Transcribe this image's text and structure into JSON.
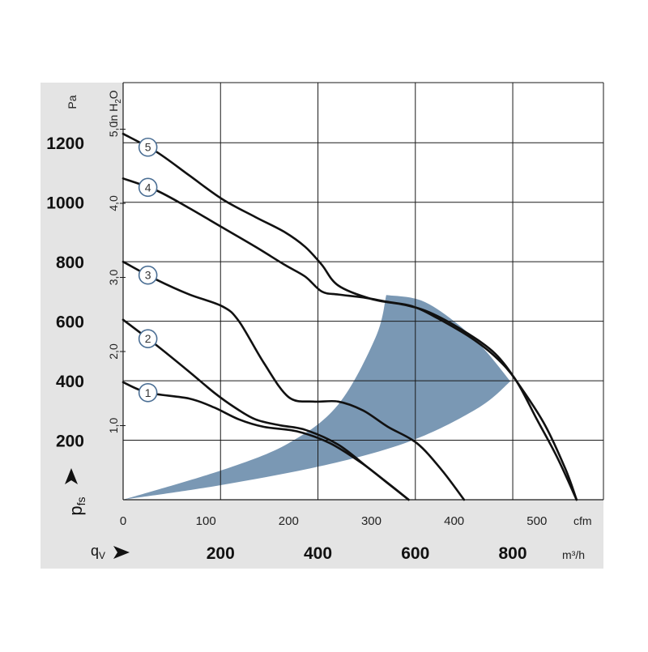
{
  "colors": {
    "panel_bg": "#e4e4e4",
    "grid": "#1a1a1a",
    "curve": "#111111",
    "operating_area": "#7a98b4",
    "marker_stroke": "#4a6e94",
    "marker_fill": "#ffffff"
  },
  "chart_data": {
    "type": "line",
    "title": "",
    "xlabel": "qV",
    "ylabel": "pfs",
    "x_unit_primary": "cfm",
    "x_unit_secondary": "m³/h",
    "y_unit_primary": "Pa",
    "y_unit_secondary": "in H2O",
    "xlim_cfm": [
      0,
      560
    ],
    "ylim_pa": [
      0,
      1400
    ],
    "grid": true,
    "x_ticks_cfm": [
      "0",
      "100",
      "200",
      "300",
      "400",
      "500"
    ],
    "x_ticks_m3h": [
      "200",
      "400",
      "600",
      "800"
    ],
    "y_ticks_pa": [
      "200",
      "400",
      "600",
      "800",
      "1000",
      "1200"
    ],
    "y_ticks_inh2o": [
      "1,0",
      "2,0",
      "3,0",
      "4,0",
      "5,0"
    ],
    "series": [
      {
        "name": "1",
        "points": [
          [
            0,
            395
          ],
          [
            30,
            360
          ],
          [
            80,
            340
          ],
          [
            110,
            310
          ],
          [
            140,
            270
          ],
          [
            170,
            245
          ],
          [
            210,
            230
          ],
          [
            250,
            190
          ],
          [
            290,
            120
          ],
          [
            320,
            55
          ],
          [
            345,
            0
          ]
        ]
      },
      {
        "name": "2",
        "points": [
          [
            0,
            605
          ],
          [
            40,
            520
          ],
          [
            80,
            430
          ],
          [
            110,
            360
          ],
          [
            135,
            310
          ],
          [
            160,
            270
          ],
          [
            190,
            250
          ],
          [
            220,
            235
          ],
          [
            260,
            185
          ],
          [
            295,
            110
          ],
          [
            325,
            45
          ],
          [
            345,
            0
          ]
        ]
      },
      {
        "name": "3",
        "points": [
          [
            0,
            800
          ],
          [
            40,
            740
          ],
          [
            80,
            690
          ],
          [
            120,
            650
          ],
          [
            140,
            600
          ],
          [
            170,
            460
          ],
          [
            200,
            345
          ],
          [
            230,
            330
          ],
          [
            260,
            330
          ],
          [
            290,
            300
          ],
          [
            320,
            245
          ],
          [
            355,
            190
          ],
          [
            385,
            100
          ],
          [
            412,
            0
          ]
        ]
      },
      {
        "name": "4",
        "points": [
          [
            0,
            1080
          ],
          [
            40,
            1040
          ],
          [
            80,
            980
          ],
          [
            120,
            915
          ],
          [
            160,
            850
          ],
          [
            195,
            790
          ],
          [
            220,
            750
          ],
          [
            240,
            700
          ],
          [
            260,
            690
          ],
          [
            290,
            680
          ],
          [
            320,
            665
          ],
          [
            350,
            650
          ],
          [
            380,
            610
          ],
          [
            420,
            545
          ],
          [
            450,
            480
          ],
          [
            475,
            400
          ],
          [
            500,
            270
          ],
          [
            525,
            140
          ],
          [
            548,
            0
          ]
        ]
      },
      {
        "name": "5",
        "points": [
          [
            0,
            1230
          ],
          [
            40,
            1170
          ],
          [
            80,
            1090
          ],
          [
            120,
            1010
          ],
          [
            160,
            950
          ],
          [
            195,
            900
          ],
          [
            220,
            850
          ],
          [
            240,
            790
          ],
          [
            260,
            720
          ],
          [
            300,
            675
          ],
          [
            340,
            655
          ],
          [
            370,
            630
          ],
          [
            410,
            570
          ],
          [
            450,
            490
          ],
          [
            480,
            380
          ],
          [
            510,
            250
          ],
          [
            535,
            100
          ],
          [
            548,
            0
          ]
        ]
      }
    ],
    "operating_area": {
      "upper_edge": [
        [
          0,
          0
        ],
        [
          120,
          100
        ],
        [
          200,
          190
        ],
        [
          260,
          320
        ],
        [
          305,
          545
        ],
        [
          318,
          688
        ]
      ],
      "outer_edge": [
        [
          318,
          688
        ],
        [
          360,
          670
        ],
        [
          400,
          600
        ],
        [
          435,
          510
        ],
        [
          468,
          398
        ]
      ],
      "lower_edge": [
        [
          468,
          398
        ],
        [
          430,
          310
        ],
        [
          350,
          200
        ],
        [
          250,
          120
        ],
        [
          120,
          50
        ],
        [
          0,
          0
        ]
      ]
    }
  }
}
